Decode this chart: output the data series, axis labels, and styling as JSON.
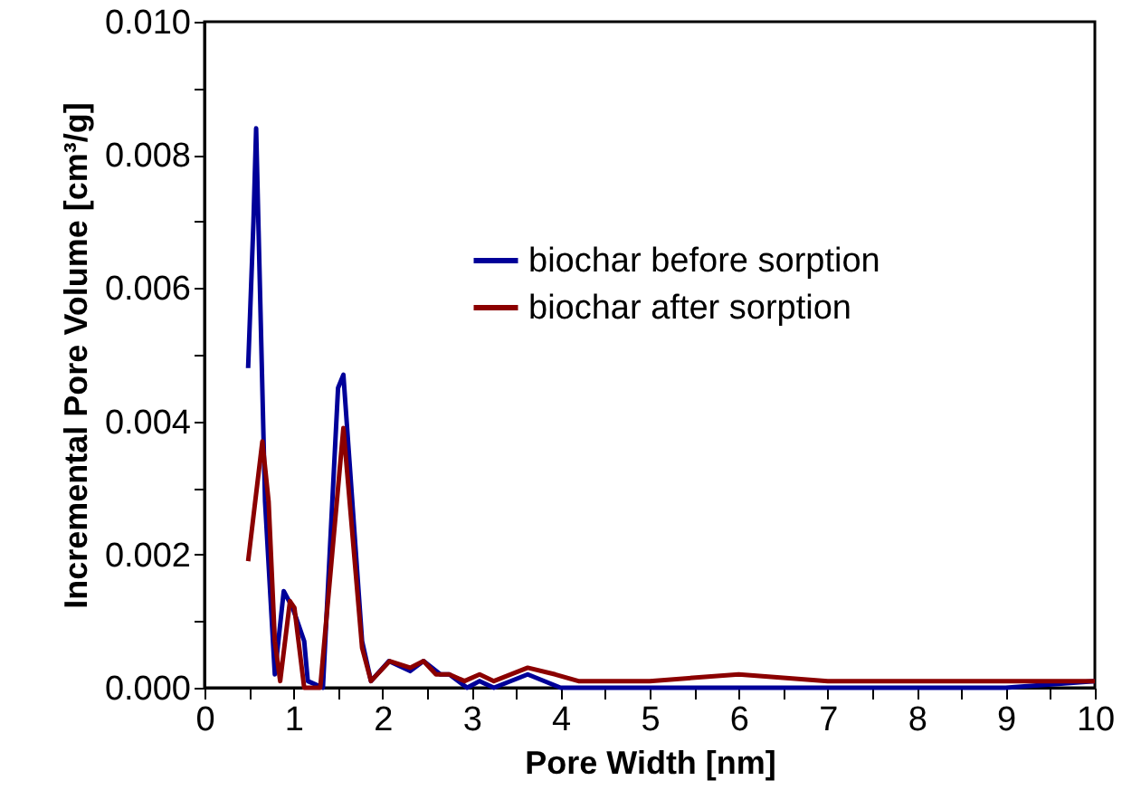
{
  "chart_data": {
    "type": "line",
    "xlabel": "Pore Width [nm]",
    "ylabel": "Incremental Pore Volume [cm³/g]",
    "xlim": [
      0,
      10
    ],
    "ylim": [
      0,
      0.01
    ],
    "xticks": [
      0,
      {
        "value": 0.5,
        "label": null
      },
      1,
      {
        "value": 1.5,
        "label": null
      },
      2,
      {
        "value": 2.5,
        "label": null
      },
      3,
      {
        "value": 3.5,
        "label": null
      },
      4,
      {
        "value": 4.5,
        "label": null
      },
      5,
      {
        "value": 5.5,
        "label": null
      },
      6,
      {
        "value": 6.5,
        "label": null
      },
      7,
      {
        "value": 7.5,
        "label": null
      },
      8,
      {
        "value": 8.5,
        "label": null
      },
      9,
      {
        "value": 9.5,
        "label": null
      },
      10
    ],
    "yticks": [
      {
        "value": 0,
        "label": "0.000"
      },
      {
        "value": 0.001,
        "label": null
      },
      {
        "value": 0.002,
        "label": "0.002"
      },
      {
        "value": 0.003,
        "label": null
      },
      {
        "value": 0.004,
        "label": "0.004"
      },
      {
        "value": 0.005,
        "label": null
      },
      {
        "value": 0.006,
        "label": "0.006"
      },
      {
        "value": 0.007,
        "label": null
      },
      {
        "value": 0.008,
        "label": "0.008"
      },
      {
        "value": 0.009,
        "label": null
      },
      {
        "value": 0.01,
        "label": "0.010"
      }
    ],
    "grid": false,
    "legend": "top",
    "marker": "none",
    "line_style": "solid",
    "series": [
      {
        "name": "biochar before sorption",
        "color": "#000099",
        "x": [
          0.49,
          0.55,
          0.58,
          0.68,
          0.79,
          0.89,
          0.99,
          1.12,
          1.16,
          1.33,
          1.5,
          1.56,
          1.77,
          1.87,
          2.07,
          2.31,
          2.46,
          2.65,
          2.75,
          2.95,
          3.09,
          3.25,
          3.63,
          4.0,
          5.0,
          6.0,
          7.0,
          8.0,
          9.0,
          10.0
        ],
        "values": [
          0.0048,
          0.007,
          0.0084,
          0.0028,
          0.0002,
          0.00145,
          0.0012,
          0.0007,
          0.0001,
          0.0,
          0.0045,
          0.0047,
          0.0007,
          0.0001,
          0.0004,
          0.00025,
          0.0004,
          0.0002,
          0.0002,
          0.0,
          0.0001,
          0.0,
          0.0002,
          0.0,
          0.0,
          0.0,
          0.0,
          0.0,
          0.0,
          0.0001
        ]
      },
      {
        "name": "biochar after sorption",
        "color": "#8b0000",
        "x": [
          0.49,
          0.65,
          0.72,
          0.79,
          0.85,
          0.96,
          1.01,
          1.12,
          1.3,
          1.56,
          1.77,
          1.87,
          2.08,
          2.31,
          2.46,
          2.6,
          2.75,
          2.92,
          3.09,
          3.25,
          3.63,
          3.94,
          4.2,
          5.0,
          6.0,
          7.0,
          8.0,
          9.0,
          10.0
        ],
        "values": [
          0.0019,
          0.0037,
          0.0028,
          0.0007,
          0.0001,
          0.0013,
          0.0012,
          0.0,
          0.0,
          0.0039,
          0.0006,
          0.0001,
          0.0004,
          0.0003,
          0.0004,
          0.0002,
          0.0002,
          0.0001,
          0.0002,
          0.0001,
          0.0003,
          0.0002,
          0.0001,
          0.0001,
          0.0002,
          0.0001,
          0.0001,
          0.0001,
          0.0001
        ]
      }
    ]
  }
}
